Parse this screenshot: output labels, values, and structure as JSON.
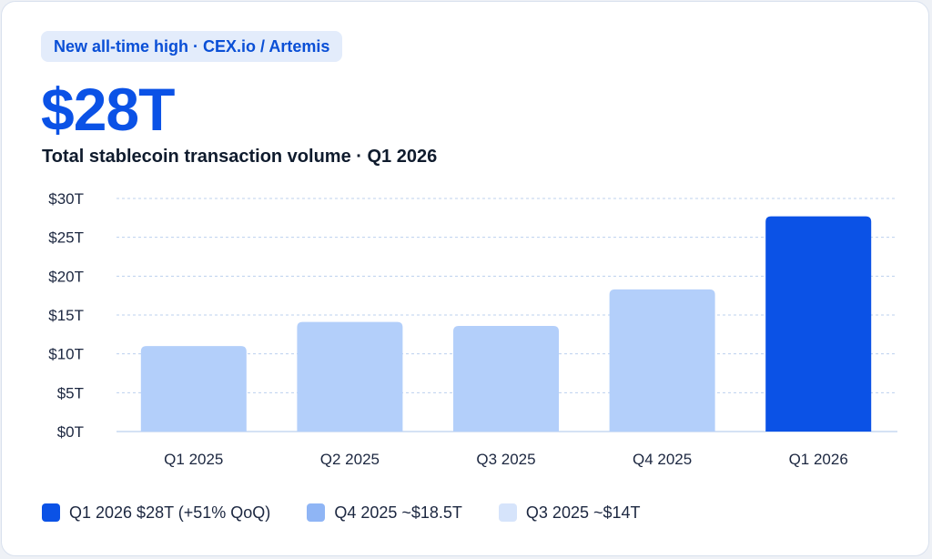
{
  "badge": "New all-time high · CEX.io / Artemis",
  "headline_value": "$28T",
  "subtitle": "Total stablecoin transaction volume · Q1 2026",
  "colors": {
    "primary": "#0b52e6",
    "bar_light": "#b3cffa",
    "bar_mid": "#8fb5f5",
    "bar_pale": "#d6e4fb",
    "grid": "#bcd0ee",
    "axis_text": "#1c2740"
  },
  "chart_data": {
    "type": "bar",
    "categories": [
      "Q1 2025",
      "Q2 2025",
      "Q3 2025",
      "Q4 2025",
      "Q1 2026"
    ],
    "values": [
      11,
      14.1,
      13.6,
      18.3,
      27.7
    ],
    "y_unit": "T",
    "ylim": [
      0,
      30
    ],
    "y_ticks": [
      "$0T",
      "$5T",
      "$10T",
      "$15T",
      "$20T",
      "$25T",
      "$30T"
    ],
    "grid": true,
    "highlight_index": 4
  },
  "legend": [
    {
      "label": "Q1 2026 $28T (+51% QoQ)",
      "color": "#0b52e6"
    },
    {
      "label": "Q4 2025 ~$18.5T",
      "color": "#8fb5f5"
    },
    {
      "label": "Q3 2025 ~$14T",
      "color": "#d6e4fb"
    }
  ]
}
